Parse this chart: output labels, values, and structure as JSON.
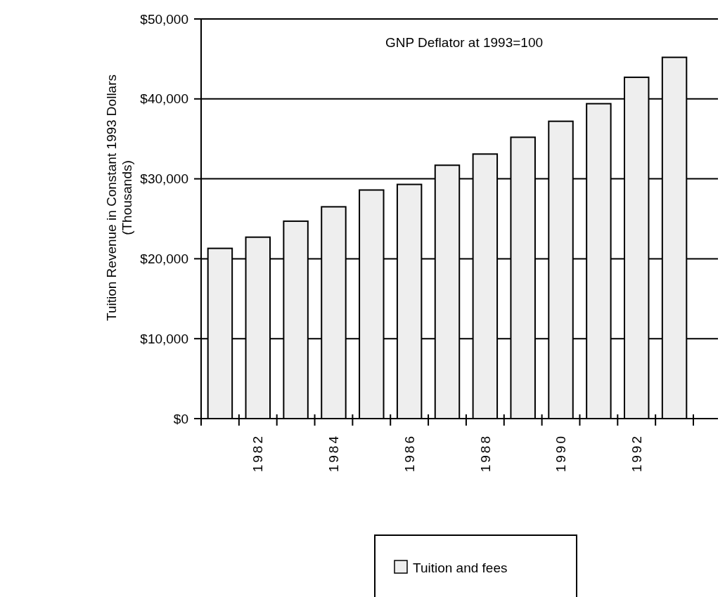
{
  "chart_data": {
    "type": "bar",
    "ylabel": "Tuition Revenue in Constant 1993 Dollars\n(Thousands)",
    "categories": [
      null,
      "1982",
      null,
      "1984",
      null,
      "1986",
      null,
      "1988",
      null,
      "1990",
      null,
      "1992",
      null
    ],
    "series": [
      {
        "name": "Tuition and fees",
        "color": "#eeeeee",
        "values": [
          21300,
          22700,
          24700,
          26500,
          28600,
          29300,
          31700,
          33100,
          35200,
          37200,
          39400,
          42700,
          45200
        ]
      }
    ],
    "ylim": [
      0,
      50000
    ],
    "yticks": [
      {
        "value": 0,
        "label": "$0"
      },
      {
        "value": 10000,
        "label": "$10,000"
      },
      {
        "value": 20000,
        "label": "$20,000"
      },
      {
        "value": 30000,
        "label": "$30,000"
      },
      {
        "value": 40000,
        "label": "$40,000"
      },
      {
        "value": 50000,
        "label": "$50,000"
      }
    ],
    "grid": "y",
    "legend": "bottom",
    "annotations": [
      "GNP Deflator at 1993=100"
    ]
  }
}
